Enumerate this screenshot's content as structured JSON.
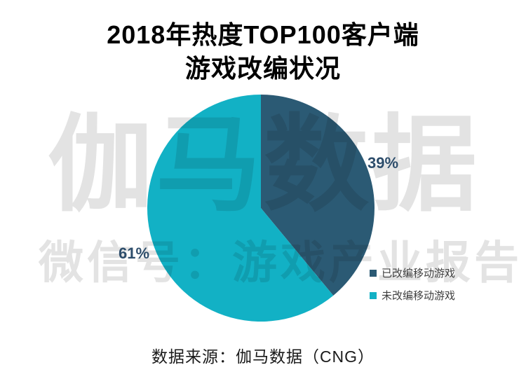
{
  "title": {
    "line1": "2018年热度TOP100客户端",
    "line2": "游戏改编状况"
  },
  "watermark": {
    "brand": "伽马数据",
    "wechat": "微信号：游戏产业报告"
  },
  "source_note": "数据来源：伽马数据（CNG）",
  "colors": {
    "slice_adapted": "#2b5a74",
    "slice_not_adapted": "#12b1c5",
    "percent_label": "#2d4d6b",
    "watermark": "#e3e3e3",
    "legend_text": "#3f3f3f",
    "title_text": "#000000",
    "source_text": "#1a1a1a"
  },
  "chart_data": {
    "type": "pie",
    "title": "2018年热度TOP100客户端游戏改编状况",
    "slices": [
      {
        "label": "已改编移动游戏",
        "value": 39,
        "pct_label": "39%",
        "color": "#2b5a74"
      },
      {
        "label": "未改编移动游戏",
        "value": 61,
        "pct_label": "61%",
        "color": "#12b1c5"
      }
    ],
    "start_angle_deg": 0,
    "direction": "clockwise",
    "legend_position": "right",
    "data_labels": "percent-outside",
    "source": "数据来源：伽马数据（CNG）"
  }
}
